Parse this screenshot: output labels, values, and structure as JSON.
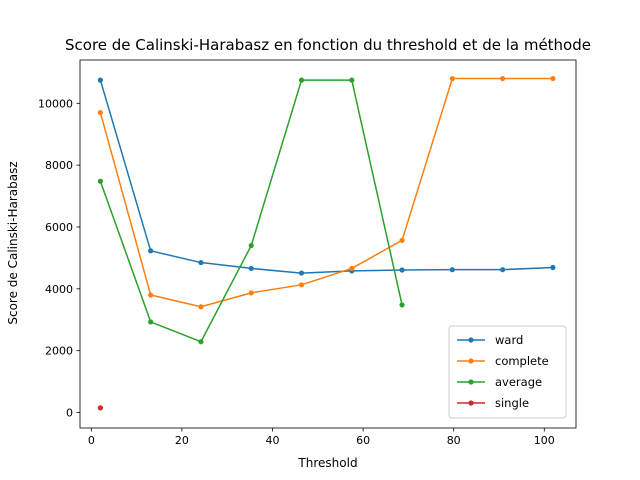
{
  "chart_data": {
    "type": "line",
    "title": "Score de Calinski-Harabasz en fonction du threshold et de la méthode",
    "xlabel": "Threshold",
    "ylabel": "Score de Calinski-Harabasz",
    "xlim": [
      -2.5,
      107
    ],
    "ylim": [
      -500,
      11400
    ],
    "xticks": [
      0,
      20,
      40,
      60,
      80,
      100
    ],
    "yticks": [
      0,
      2000,
      4000,
      6000,
      8000,
      10000
    ],
    "grid": false,
    "legend_position": "lower-right",
    "series": [
      {
        "name": "ward",
        "color": "#1f77b4",
        "points": [
          [
            2,
            10750
          ],
          [
            13.1,
            5230
          ],
          [
            24.2,
            4850
          ],
          [
            35.3,
            4660
          ],
          [
            46.4,
            4510
          ],
          [
            57.5,
            4580
          ],
          [
            68.6,
            4610
          ],
          [
            79.7,
            4620
          ],
          [
            90.8,
            4620
          ],
          [
            101.9,
            4690
          ]
        ]
      },
      {
        "name": "complete",
        "color": "#ff7f0e",
        "points": [
          [
            2,
            9700
          ],
          [
            13.1,
            3800
          ],
          [
            24.2,
            3420
          ],
          [
            35.3,
            3870
          ],
          [
            46.4,
            4130
          ],
          [
            57.5,
            4660
          ],
          [
            68.6,
            5570
          ],
          [
            79.7,
            10800
          ],
          [
            90.8,
            10800
          ],
          [
            101.9,
            10800
          ]
        ]
      },
      {
        "name": "average",
        "color": "#2ca02c",
        "points": [
          [
            2,
            7480
          ],
          [
            13.1,
            2930
          ],
          [
            24.2,
            2290
          ],
          [
            35.3,
            5400
          ],
          [
            46.4,
            10750
          ],
          [
            57.5,
            10750
          ],
          [
            68.6,
            3480
          ]
        ]
      },
      {
        "name": "single",
        "color": "#d62728",
        "points": [
          [
            2,
            150
          ]
        ]
      }
    ]
  }
}
